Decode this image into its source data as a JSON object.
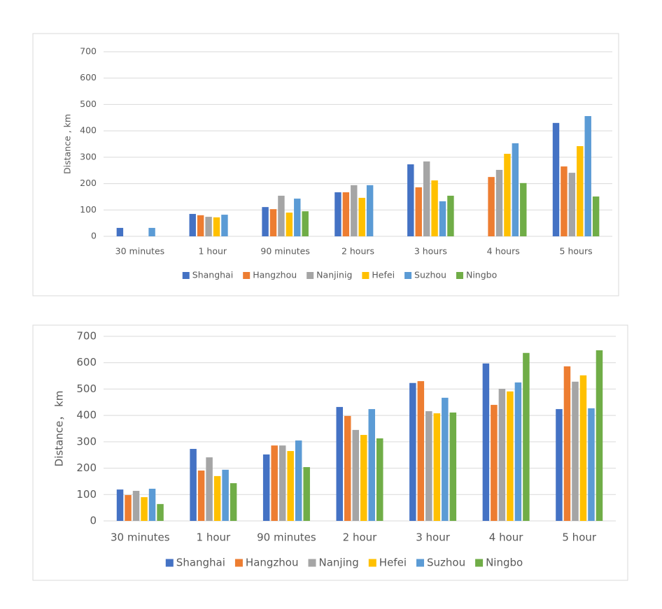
{
  "chart_data": [
    {
      "type": "bar",
      "ylabel": "Distance , km",
      "categories": [
        "30 minutes",
        "1 hour",
        "90 minutes",
        "2 hours",
        "3 hours",
        "4 hours",
        "5 hours"
      ],
      "series": [
        {
          "name": "Shanghai",
          "color": "#4472c4",
          "values": [
            32,
            85,
            111,
            167,
            273,
            null,
            430
          ]
        },
        {
          "name": "Hangzhou",
          "color": "#ed7d31",
          "values": [
            null,
            80,
            103,
            167,
            186,
            225,
            265
          ]
        },
        {
          "name": "Nanjinig",
          "color": "#a5a5a5",
          "values": [
            null,
            74,
            154,
            194,
            284,
            252,
            241
          ]
        },
        {
          "name": "Hefei",
          "color": "#ffc000",
          "values": [
            null,
            72,
            90,
            146,
            212,
            313,
            342
          ]
        },
        {
          "name": "Suzhou",
          "color": "#5b9bd5",
          "values": [
            32,
            82,
            143,
            194,
            133,
            353,
            456
          ]
        },
        {
          "name": "Ningbo",
          "color": "#70ad47",
          "values": [
            null,
            null,
            95,
            null,
            154,
            202,
            151
          ]
        }
      ],
      "ylim": [
        0,
        700
      ],
      "yticks": [
        0,
        100,
        200,
        300,
        400,
        500,
        600,
        700
      ],
      "grid": true,
      "legend": "bottom"
    },
    {
      "type": "bar",
      "ylabel": "Distance， km",
      "categories": [
        "30 minutes",
        "1 hour",
        "90 minutes",
        "2 hour",
        "3 hour",
        "4 hour",
        "5 hour"
      ],
      "series": [
        {
          "name": "Shanghai",
          "color": "#4472c4",
          "values": [
            119,
            273,
            252,
            432,
            523,
            597,
            424
          ]
        },
        {
          "name": "Hangzhou",
          "color": "#ed7d31",
          "values": [
            98,
            191,
            286,
            398,
            530,
            440,
            586
          ]
        },
        {
          "name": "Nanjing",
          "color": "#a5a5a5",
          "values": [
            114,
            241,
            286,
            345,
            416,
            501,
            528
          ]
        },
        {
          "name": "Hefei",
          "color": "#ffc000",
          "values": [
            90,
            170,
            265,
            326,
            408,
            491,
            552
          ]
        },
        {
          "name": "Suzhou",
          "color": "#5b9bd5",
          "values": [
            122,
            194,
            305,
            424,
            467,
            525,
            427
          ]
        },
        {
          "name": "Ningbo",
          "color": "#70ad47",
          "values": [
            64,
            143,
            204,
            313,
            411,
            637,
            647
          ]
        }
      ],
      "ylim": [
        0,
        700
      ],
      "yticks": [
        0,
        100,
        200,
        300,
        400,
        500,
        600,
        700
      ],
      "grid": true,
      "legend": "bottom"
    }
  ]
}
